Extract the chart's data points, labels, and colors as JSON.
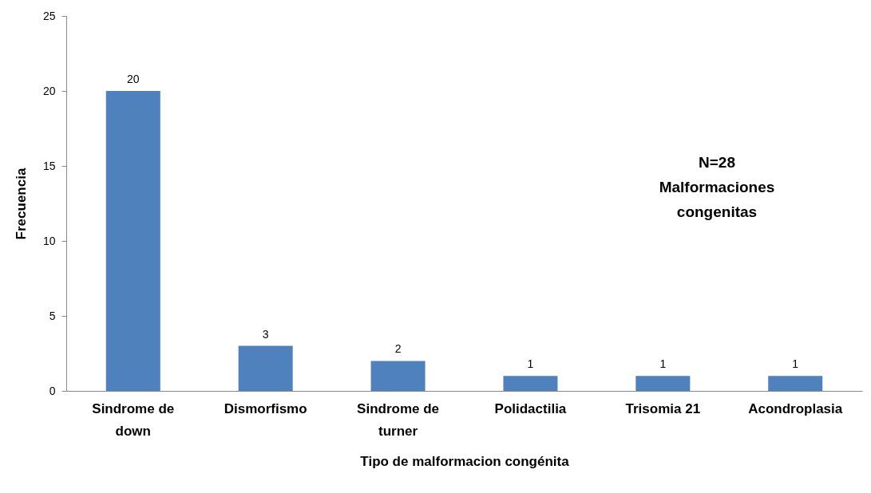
{
  "chart_data": {
    "type": "bar",
    "xlabel": "Tipo de malformacion congénita",
    "ylabel": "Frecuencia",
    "categories": [
      "Sindrome de down",
      "Dismorfismo",
      "Sindrome de turner",
      "Polidactilia",
      "Trisomia 21",
      "Acondroplasia"
    ],
    "values": [
      20,
      3,
      2,
      1,
      1,
      1
    ],
    "color": "#4f81bd",
    "ylim": [
      0,
      25
    ],
    "yticks": [
      0,
      5,
      10,
      15,
      20,
      25
    ],
    "grid": false,
    "data_labels": true,
    "annotations": [
      "N=28",
      "Malformaciones congenitas"
    ]
  }
}
